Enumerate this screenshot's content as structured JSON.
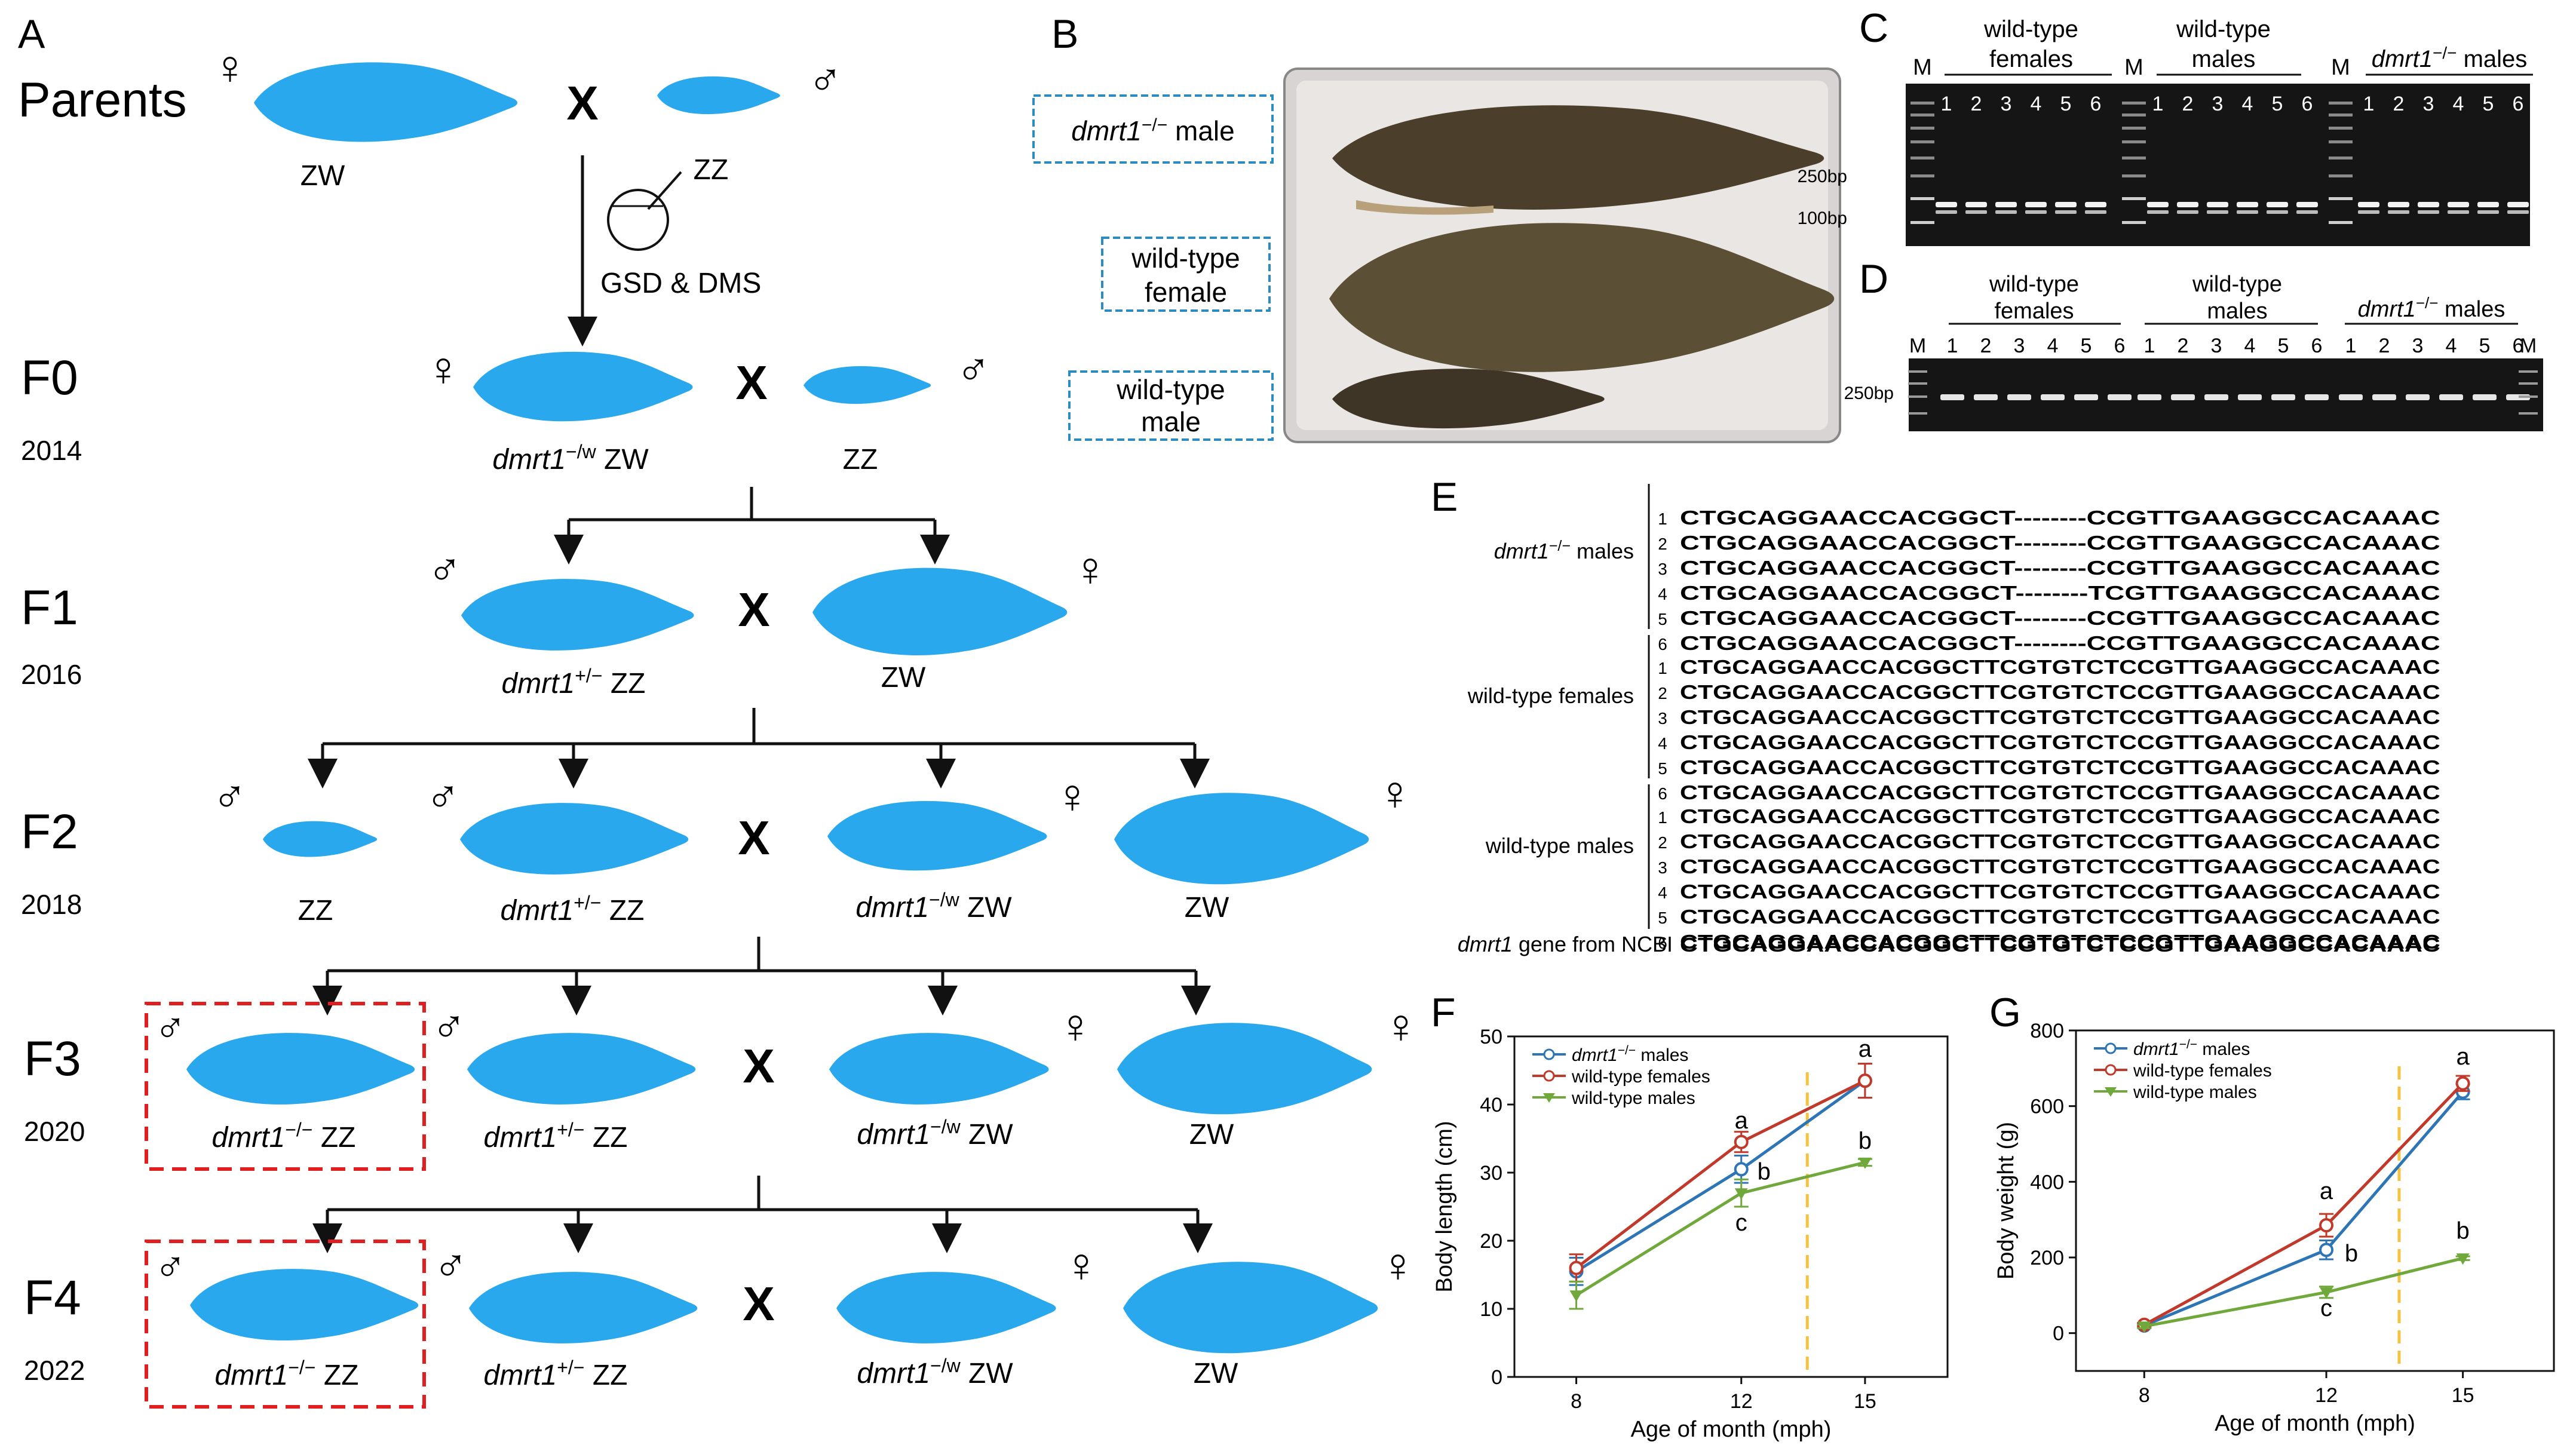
{
  "panel_labels": {
    "a": "A",
    "b": "B",
    "c": "C",
    "d": "D",
    "e": "E",
    "f": "F",
    "g": "G"
  },
  "symbols": {
    "female": "♀",
    "male": "♂",
    "cross": "X"
  },
  "panel_a": {
    "parents_label": "Parents",
    "parents_female_genotype": "ZW",
    "parents_male_genotype": "ZZ",
    "method": "GSD & DMS",
    "generations": [
      {
        "label": "F0",
        "year": "2014"
      },
      {
        "label": "F1",
        "year": "2016"
      },
      {
        "label": "F2",
        "year": "2018"
      },
      {
        "label": "F3",
        "year": "2020"
      },
      {
        "label": "F4",
        "year": "2022"
      }
    ],
    "gene": "dmrt1",
    "sup_hom": "−/−",
    "sup_het": "+/−",
    "sup_w": "−/w",
    "zz": "ZZ",
    "zw": "ZW"
  },
  "panel_b": {
    "label_male_gene": "dmrt1",
    "label_male_sup": "−/−",
    "label_male_rest": " male",
    "label_female_l1": "wild-type",
    "label_female_l2": "female",
    "label_wt_male_l1": "wild-type",
    "label_wt_male_l2": "male"
  },
  "panel_c": {
    "group1_l1": "wild-type",
    "group1_l2": "females",
    "group2_l1": "wild-type",
    "group2_l2": "males",
    "group3_gene": "dmrt1",
    "group3_sup": "−/−",
    "group3_rest": " males",
    "marker": "M",
    "lanes": [
      "1",
      "2",
      "3",
      "4",
      "5",
      "6"
    ],
    "band_250": "250bp",
    "band_100": "100bp"
  },
  "panel_d": {
    "group1_l1": "wild-type",
    "group1_l2": "females",
    "group2_l1": "wild-type",
    "group2_l2": "males",
    "group3_gene": "dmrt1",
    "group3_sup": "−/−",
    "group3_rest": " males",
    "marker": "M",
    "lanes": [
      "1",
      "2",
      "3",
      "4",
      "5",
      "6"
    ],
    "band_250": "250bp"
  },
  "panel_e": {
    "group_mut_gene": "dmrt1",
    "group_mut_sup": "−/−",
    "group_mut_rest": " males",
    "group_wtf": "wild-type females",
    "group_wtm": "wild-type males",
    "ncbi_gene": "dmrt1",
    "ncbi_rest": " gene from NCBI",
    "row_numbers": [
      "1",
      "2",
      "3",
      "4",
      "5",
      "6"
    ],
    "mutant_rows": [
      "CTGCAGGAACCACGGCT--------CCGTTGAAGGCCACAAAC",
      "CTGCAGGAACCACGGCT--------CCGTTGAAGGCCACAAAC",
      "CTGCAGGAACCACGGCT--------CCGTTGAAGGCCACAAAC",
      "CTGCAGGAACCACGGCT--------TCGTTGAAGGCCACAAAC",
      "CTGCAGGAACCACGGCT--------CCGTTGAAGGCCACAAAC",
      "CTGCAGGAACCACGGCT--------CCGTTGAAGGCCACAAAC"
    ],
    "wt_female_rows": [
      "CTGCAGGAACCACGGCTTCGTGTCTCCGTTGAAGGCCACAAAC",
      "CTGCAGGAACCACGGCTTCGTGTCTCCGTTGAAGGCCACAAAC",
      "CTGCAGGAACCACGGCTTCGTGTCTCCGTTGAAGGCCACAAAC",
      "CTGCAGGAACCACGGCTTCGTGTCTCCGTTGAAGGCCACAAAC",
      "CTGCAGGAACCACGGCTTCGTGTCTCCGTTGAAGGCCACAAAC",
      "CTGCAGGAACCACGGCTTCGTGTCTCCGTTGAAGGCCACAAAC"
    ],
    "wt_male_rows": [
      "CTGCAGGAACCACGGCTTCGTGTCTCCGTTGAAGGCCACAAAC",
      "CTGCAGGAACCACGGCTTCGTGTCTCCGTTGAAGGCCACAAAC",
      "CTGCAGGAACCACGGCTTCGTGTCTCCGTTGAAGGCCACAAAC",
      "CTGCAGGAACCACGGCTTCGTGTCTCCGTTGAAGGCCACAAAC",
      "CTGCAGGAACCACGGCTTCGTGTCTCCGTTGAAGGCCACAAAC",
      "CTGCAGGAACCACGGCTTCGTGTCTCCGTTGAAGGCCACAAAC"
    ],
    "ncbi_row": "CTGCAGGAACCACGGCTTCGTGTCTCCGTTGAAGGCCACAAAC"
  },
  "colors": {
    "fish": "#29a8ee",
    "mutant": "#2e75b6",
    "wt_female": "#c0392b",
    "wt_male": "#70a83c",
    "dashed_line": "#f5c242",
    "highlight_box": "#e02020",
    "label_box": "#2e8bc0"
  },
  "chart_data": [
    {
      "panel": "F",
      "type": "line",
      "xlabel": "Age of month (mph)",
      "ylabel": "Body length (cm)",
      "x": [
        8,
        12,
        15
      ],
      "x_ticks": [
        "8",
        "12",
        "15"
      ],
      "ylim": [
        0,
        50
      ],
      "y_ticks": [
        "0",
        "10",
        "20",
        "30",
        "40",
        "50"
      ],
      "series": [
        {
          "name_gene": "dmrt1",
          "name_sup": "−/−",
          "name_rest": " males",
          "values": [
            15.5,
            30.5,
            43.5
          ],
          "errors": [
            2,
            2,
            2.5
          ],
          "marker": "circle",
          "color_key": "mutant"
        },
        {
          "name_gene": "",
          "name_sup": "",
          "name_rest": "wild-type females",
          "values": [
            16,
            34.5,
            43.5
          ],
          "errors": [
            2,
            1.5,
            2.5
          ],
          "marker": "circle",
          "color_key": "wt_female"
        },
        {
          "name_gene": "",
          "name_sup": "",
          "name_rest": "wild-type males",
          "values": [
            12,
            27,
            31.5
          ],
          "errors": [
            2,
            2,
            0.5
          ],
          "marker": "triangle",
          "color_key": "wt_male"
        }
      ],
      "annotations": [
        {
          "x": 12,
          "y": 36.5,
          "text": "a"
        },
        {
          "x": 12.55,
          "y": 29,
          "text": "b"
        },
        {
          "x": 12,
          "y": 21.5,
          "text": "c"
        },
        {
          "x": 15,
          "y": 47,
          "text": "a"
        },
        {
          "x": 15,
          "y": 33.5,
          "text": "b"
        }
      ],
      "marker_line_x": 13.6
    },
    {
      "panel": "G",
      "type": "line",
      "xlabel": "Age of month (mph)",
      "ylabel": "Body weight (g)",
      "x": [
        8,
        12,
        15
      ],
      "x_ticks": [
        "8",
        "12",
        "15"
      ],
      "ylim": [
        -100,
        800
      ],
      "y_ticks": [
        "0",
        "200",
        "400",
        "600",
        "800"
      ],
      "y_tick_values": [
        0,
        200,
        400,
        600,
        800
      ],
      "series": [
        {
          "name_gene": "dmrt1",
          "name_sup": "−/−",
          "name_rest": " males",
          "values": [
            20,
            220,
            638
          ],
          "errors": [
            5,
            25,
            20
          ],
          "marker": "circle",
          "color_key": "mutant"
        },
        {
          "name_gene": "",
          "name_sup": "",
          "name_rest": "wild-type females",
          "values": [
            22,
            285,
            660
          ],
          "errors": [
            5,
            30,
            20
          ],
          "marker": "circle",
          "color_key": "wt_female"
        },
        {
          "name_gene": "",
          "name_sup": "",
          "name_rest": "wild-type males",
          "values": [
            18,
            108,
            198
          ],
          "errors": [
            5,
            15,
            5
          ],
          "marker": "triangle",
          "color_key": "wt_male"
        }
      ],
      "annotations": [
        {
          "x": 12,
          "y": 355,
          "text": "a"
        },
        {
          "x": 12.55,
          "y": 190,
          "text": "b"
        },
        {
          "x": 12,
          "y": 45,
          "text": "c"
        },
        {
          "x": 15,
          "y": 710,
          "text": "a"
        },
        {
          "x": 15,
          "y": 250,
          "text": "b"
        }
      ],
      "marker_line_x": 13.6
    }
  ]
}
